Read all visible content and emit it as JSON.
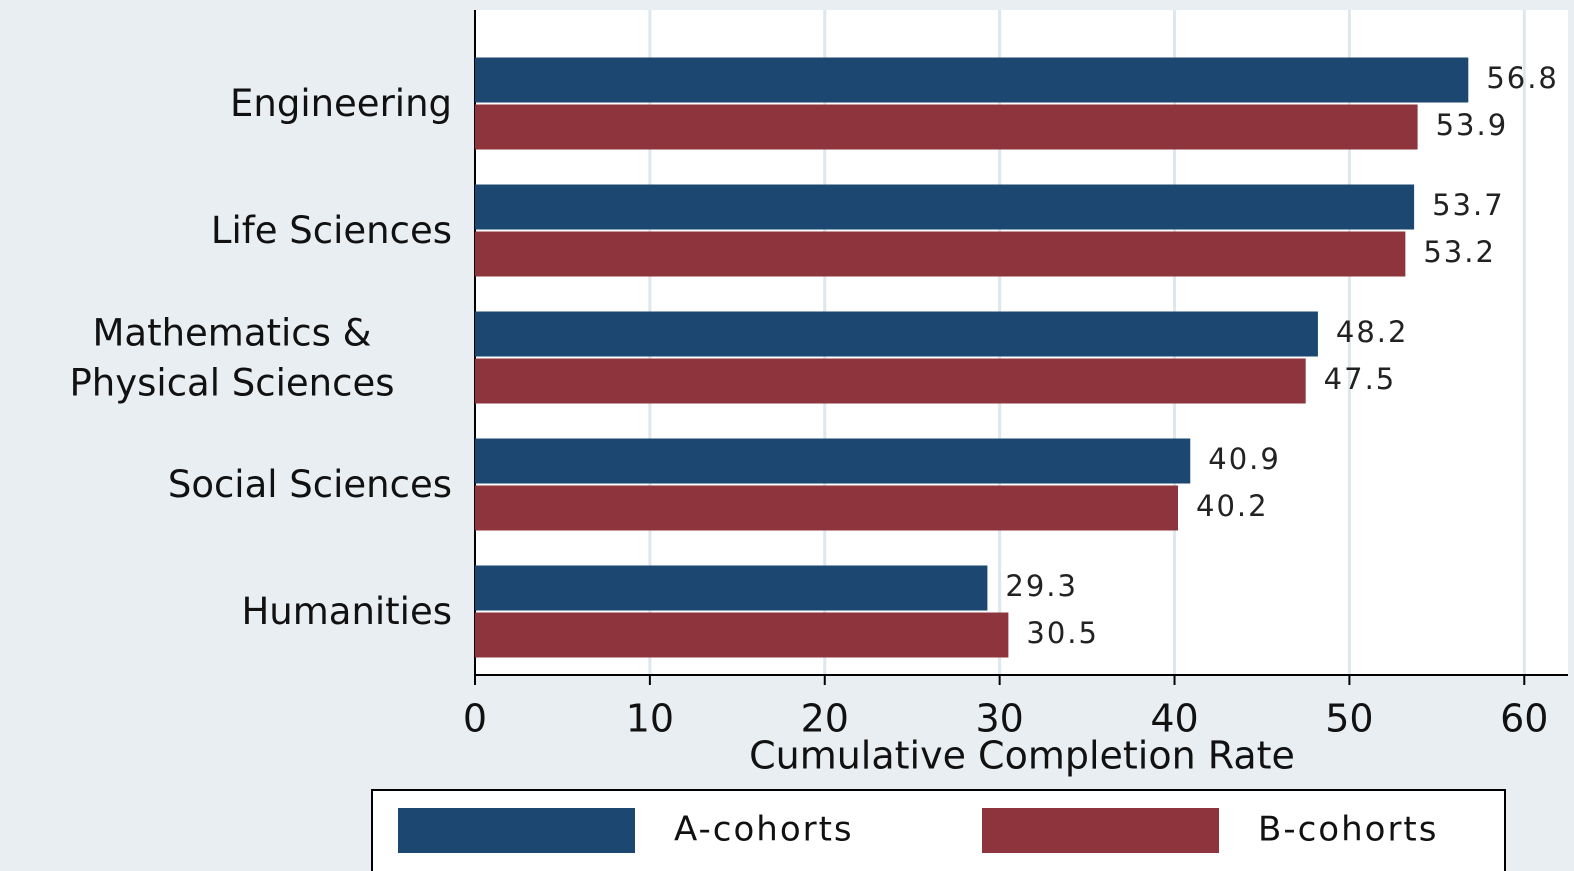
{
  "chart_data": {
    "type": "barh",
    "xlabel": "Cumulative Completion Rate",
    "categories": [
      "Engineering",
      "Life Sciences",
      "Mathematics & Physical Sciences",
      "Social Sciences",
      "Humanities"
    ],
    "series": [
      {
        "name": "A-cohorts",
        "color": "#1b4770",
        "values": [
          56.8,
          53.7,
          48.2,
          40.9,
          29.3
        ]
      },
      {
        "name": "B-cohorts",
        "color": "#8e343c",
        "values": [
          53.9,
          53.2,
          47.5,
          40.2,
          30.5
        ]
      }
    ],
    "xlim": [
      0,
      62.5
    ],
    "xticks": [
      0,
      10,
      20,
      30,
      40,
      50,
      60
    ],
    "grid": true
  }
}
